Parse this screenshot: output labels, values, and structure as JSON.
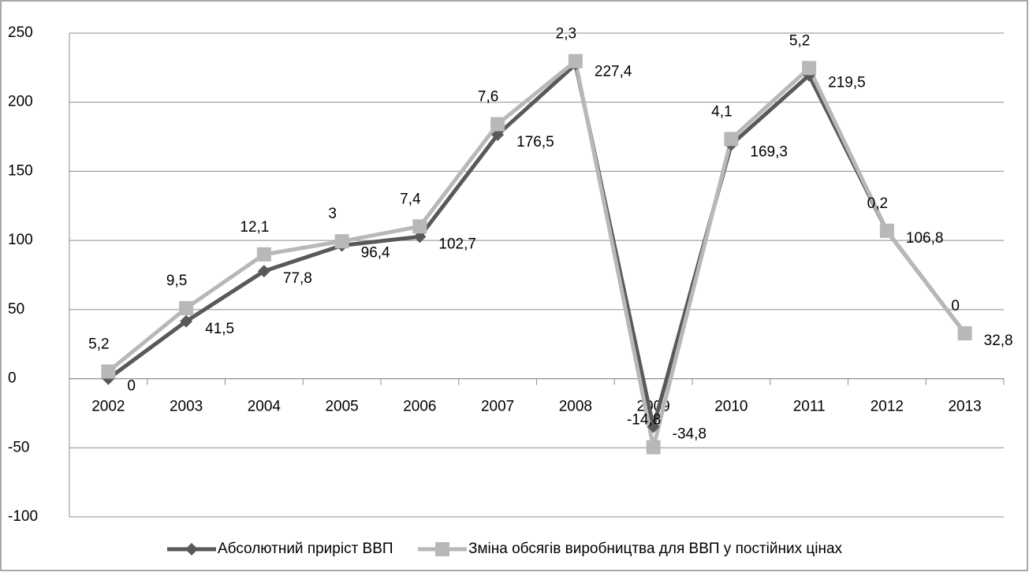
{
  "chart_data": {
    "type": "line",
    "stacked": true,
    "categories": [
      "2002",
      "2003",
      "2004",
      "2005",
      "2006",
      "2007",
      "2008",
      "2009",
      "2010",
      "2011",
      "2012",
      "2013"
    ],
    "series": [
      {
        "name": "Абсолютний приріст ВВП",
        "color": "#595959",
        "marker": "diamond",
        "values": [
          0,
          41.5,
          77.8,
          96.4,
          102.7,
          176.5,
          227.4,
          -34.8,
          169.3,
          219.5,
          106.8,
          32.8
        ],
        "value_labels": [
          "0",
          "41,5",
          "77,8",
          "96,4",
          "102,7",
          "176,5",
          "227,4",
          "-34,8",
          "169,3",
          "219,5",
          "106,8",
          "32,8"
        ]
      },
      {
        "name": "Зміна обсягів виробництва для ВВП у постійних цінах",
        "color": "#b8b8b8",
        "marker": "square",
        "values": [
          5.2,
          9.5,
          12.1,
          3,
          7.4,
          7.6,
          2.3,
          -14.8,
          4.1,
          5.2,
          0.2,
          0
        ],
        "value_labels": [
          "5,2",
          "9,5",
          "12,1",
          "3",
          "7,4",
          "7,6",
          "2,3",
          "-14,8",
          "4,1",
          "5,2",
          "0,2",
          "0"
        ]
      }
    ],
    "ylim": [
      -100,
      250
    ],
    "yticks": [
      -100,
      -50,
      0,
      50,
      100,
      150,
      200,
      250
    ],
    "grid": true,
    "legend": "bottom"
  }
}
